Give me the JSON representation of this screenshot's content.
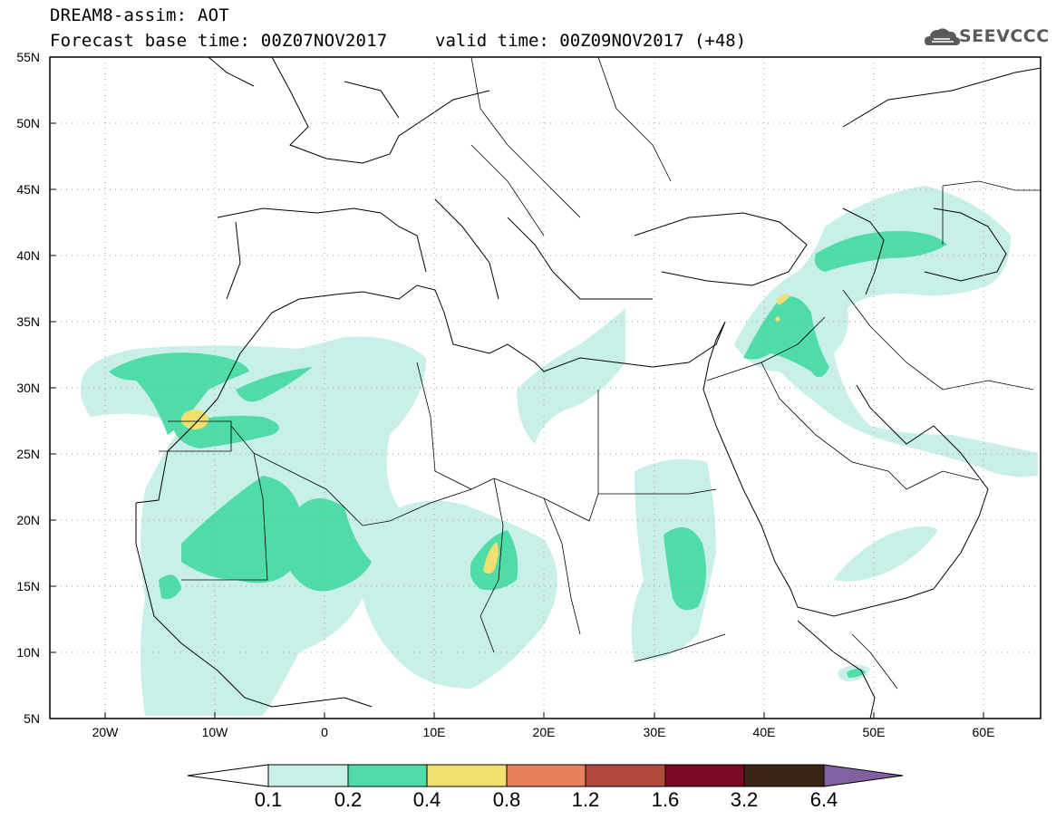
{
  "title": {
    "line1": "DREAM8-assim: AOT",
    "base_time": "Forecast base time: 00Z07NOV2017",
    "valid_time": "valid time: 00Z09NOV2017 (+48)"
  },
  "logo": {
    "text": "SEEVCCC",
    "icon": "cloud-icon"
  },
  "map": {
    "lat_labels": [
      "55N",
      "50N",
      "45N",
      "40N",
      "35N",
      "30N",
      "25N",
      "20N",
      "15N",
      "10N",
      "5N"
    ],
    "lon_labels": [
      "20W",
      "10W",
      "0",
      "10E",
      "20E",
      "30E",
      "40E",
      "50E",
      "60E"
    ],
    "lat_range": [
      5,
      55
    ],
    "lon_range": [
      -25,
      65
    ],
    "grid": "dotted"
  },
  "colorbar": {
    "labels": [
      "0.1",
      "0.2",
      "0.4",
      "0.8",
      "1.2",
      "1.6",
      "3.2",
      "6.4"
    ],
    "colors": [
      "#c8f0e8",
      "#50dca8",
      "#f0e070",
      "#e88060",
      "#b04a3a",
      "#7a0a28",
      "#3a2414",
      "#8060a0"
    ],
    "under_color": "#ffffff"
  }
}
